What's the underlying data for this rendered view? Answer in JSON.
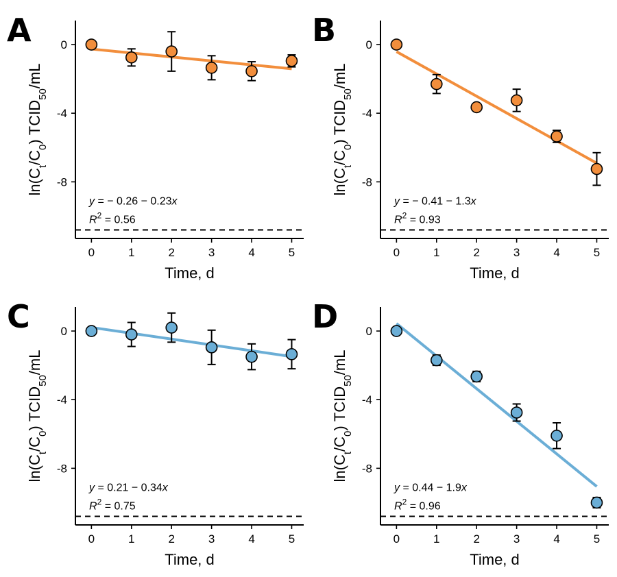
{
  "chart_data": [
    {
      "panel": "A",
      "type": "scatter",
      "xlabel": "Time, d",
      "ylabel": "ln(Ct/C0) TCID50/mL",
      "x_ticks": [
        0,
        1,
        2,
        3,
        4,
        5
      ],
      "y_ticks": [
        0,
        -4,
        -8
      ],
      "y_tick_labels": [
        "0",
        "-4",
        "-8"
      ],
      "xlim": [
        -0.4,
        5.3
      ],
      "ylim": [
        -11.3,
        1.4
      ],
      "color": "#F28E3C",
      "reference_y": -10.8,
      "x": [
        0,
        1,
        2,
        3,
        4,
        5
      ],
      "y": [
        0,
        -0.75,
        -0.4,
        -1.35,
        -1.55,
        -0.95
      ],
      "err": [
        0,
        0.5,
        1.15,
        0.7,
        0.55,
        0.35
      ],
      "fit": {
        "intercept": -0.26,
        "slope": -0.23
      },
      "equation": {
        "lhs": "y",
        "rhs": " = − 0.26 − 0.23",
        "var": "x"
      },
      "r2": {
        "label": "R",
        "sup": "2",
        "value": " = 0.56"
      }
    },
    {
      "panel": "B",
      "type": "scatter",
      "xlabel": "Time, d",
      "ylabel": "ln(Ct/C0) TCID50/mL",
      "x_ticks": [
        0,
        1,
        2,
        3,
        4,
        5
      ],
      "y_ticks": [
        0,
        -4,
        -8
      ],
      "y_tick_labels": [
        "0",
        "-4",
        "-8"
      ],
      "xlim": [
        -0.4,
        5.3
      ],
      "ylim": [
        -11.3,
        1.4
      ],
      "color": "#F28E3C",
      "reference_y": -10.8,
      "x": [
        0,
        1,
        2,
        3,
        4,
        5
      ],
      "y": [
        0,
        -2.3,
        -3.65,
        -3.25,
        -5.35,
        -7.25
      ],
      "err": [
        0,
        0.55,
        0.05,
        0.65,
        0.35,
        0.95
      ],
      "fit": {
        "intercept": -0.41,
        "slope": -1.3
      },
      "equation": {
        "lhs": "y",
        "rhs": " = − 0.41 − 1.3",
        "var": "x"
      },
      "r2": {
        "label": "R",
        "sup": "2",
        "value": " = 0.93"
      }
    },
    {
      "panel": "C",
      "type": "scatter",
      "xlabel": "Time, d",
      "ylabel": "ln(Ct/C0) TCID50/mL",
      "x_ticks": [
        0,
        1,
        2,
        3,
        4,
        5
      ],
      "y_ticks": [
        0,
        -4,
        -8
      ],
      "y_tick_labels": [
        "0",
        "-4",
        "-8"
      ],
      "xlim": [
        -0.4,
        5.3
      ],
      "ylim": [
        -11.3,
        1.4
      ],
      "color": "#6BAED6",
      "reference_y": -10.8,
      "x": [
        0,
        1,
        2,
        3,
        4,
        5
      ],
      "y": [
        0,
        -0.2,
        0.2,
        -0.95,
        -1.5,
        -1.35
      ],
      "err": [
        0,
        0.7,
        0.85,
        1.0,
        0.75,
        0.85
      ],
      "fit": {
        "intercept": 0.21,
        "slope": -0.34
      },
      "equation": {
        "lhs": "y",
        "rhs": " = 0.21 − 0.34",
        "var": "x"
      },
      "r2": {
        "label": "R",
        "sup": "2",
        "value": " = 0.75"
      }
    },
    {
      "panel": "D",
      "type": "scatter",
      "xlabel": "Time, d",
      "ylabel": "ln(Ct/C0) TCID50/mL",
      "x_ticks": [
        0,
        1,
        2,
        3,
        4,
        5
      ],
      "y_ticks": [
        0,
        -4,
        -8
      ],
      "y_tick_labels": [
        "0",
        "-4",
        "-8"
      ],
      "xlim": [
        -0.4,
        5.3
      ],
      "ylim": [
        -11.3,
        1.4
      ],
      "color": "#6BAED6",
      "reference_y": -10.8,
      "x": [
        0,
        1,
        2,
        3,
        4,
        5
      ],
      "y": [
        0,
        -1.7,
        -2.65,
        -4.75,
        -6.1,
        -10.0
      ],
      "err": [
        0,
        0.3,
        0.3,
        0.5,
        0.75,
        0.3
      ],
      "fit": {
        "intercept": 0.44,
        "slope": -1.9
      },
      "equation": {
        "lhs": "y",
        "rhs": " = 0.44 − 1.9",
        "var": "x"
      },
      "r2": {
        "label": "R",
        "sup": "2",
        "value": " = 0.96"
      }
    }
  ]
}
